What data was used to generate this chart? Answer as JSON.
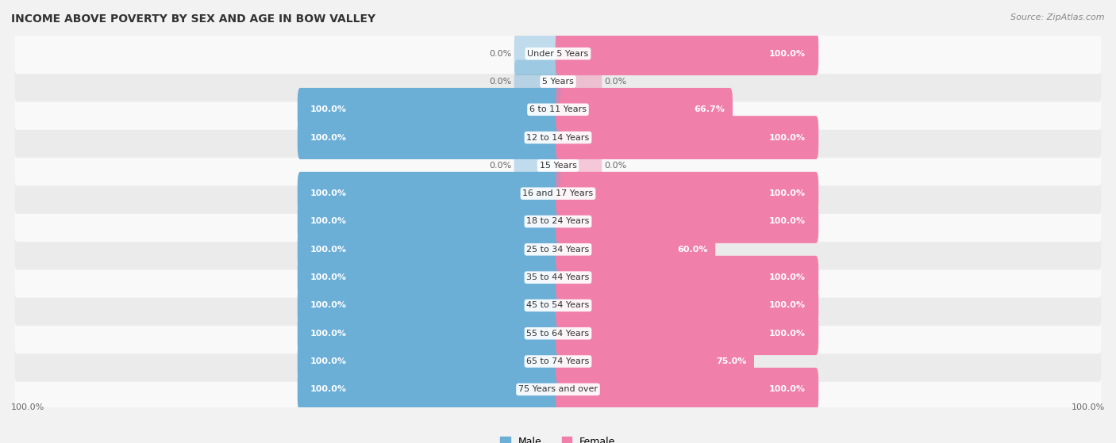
{
  "title": "INCOME ABOVE POVERTY BY SEX AND AGE IN BOW VALLEY",
  "source": "Source: ZipAtlas.com",
  "categories": [
    "Under 5 Years",
    "5 Years",
    "6 to 11 Years",
    "12 to 14 Years",
    "15 Years",
    "16 and 17 Years",
    "18 to 24 Years",
    "25 to 34 Years",
    "35 to 44 Years",
    "45 to 54 Years",
    "55 to 64 Years",
    "65 to 74 Years",
    "75 Years and over"
  ],
  "male_values": [
    0.0,
    0.0,
    100.0,
    100.0,
    0.0,
    100.0,
    100.0,
    100.0,
    100.0,
    100.0,
    100.0,
    100.0,
    100.0
  ],
  "female_values": [
    100.0,
    0.0,
    66.7,
    100.0,
    0.0,
    100.0,
    100.0,
    60.0,
    100.0,
    100.0,
    100.0,
    75.0,
    100.0
  ],
  "male_color": "#6baed6",
  "female_color": "#f07faa",
  "background_color": "#f2f2f2",
  "row_color_even": "#f9f9f9",
  "row_color_odd": "#ebebeb",
  "title_fontsize": 10,
  "label_fontsize": 8,
  "value_fontsize": 8,
  "legend_fontsize": 9
}
